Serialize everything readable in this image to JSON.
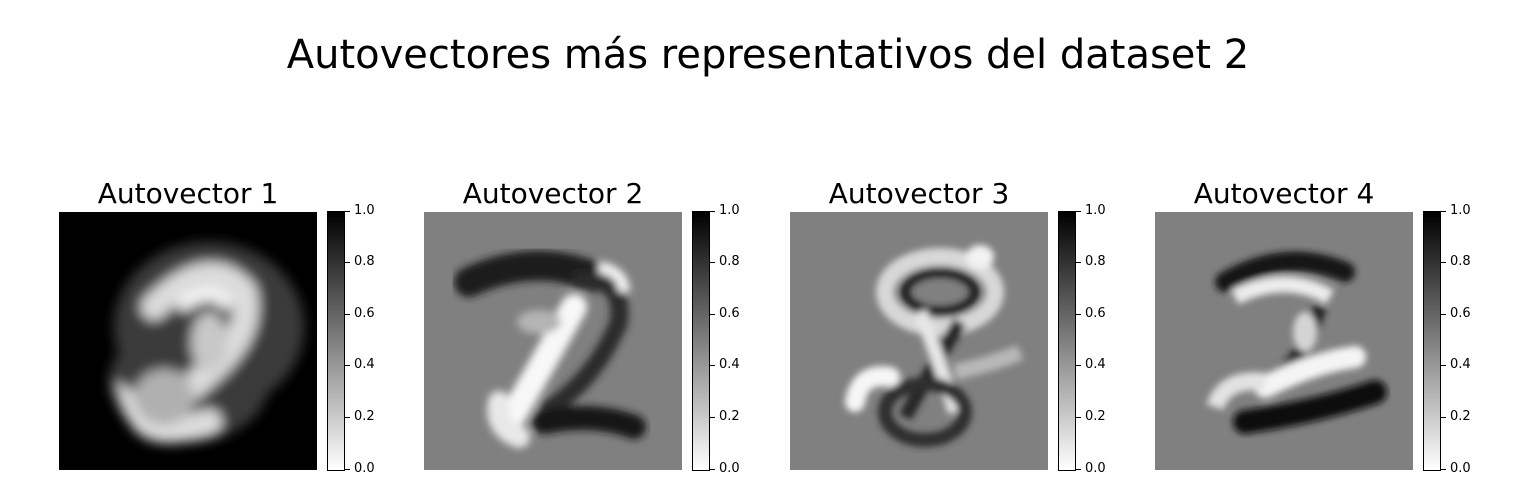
{
  "figure": {
    "title": "Autovectores más representativos del dataset 2"
  },
  "chart_data": [
    {
      "type": "heatmap",
      "title": "Autovector 1",
      "image": "28x28 eigenvector image (eigen-digit, bright '2' shape on black background)",
      "colormap": "gray_r",
      "clim": [
        0,
        1
      ],
      "colorbar_ticks": [
        "0.0",
        "0.2",
        "0.4",
        "0.6",
        "0.8",
        "1.0"
      ],
      "background_value": 1.0
    },
    {
      "type": "heatmap",
      "title": "Autovector 2",
      "image": "28x28 eigenvector image (light and dark strokes on mid-gray background)",
      "colormap": "gray_r",
      "clim": [
        0,
        1
      ],
      "colorbar_ticks": [
        "0.0",
        "0.2",
        "0.4",
        "0.6",
        "0.8",
        "1.0"
      ],
      "background_value": 0.5
    },
    {
      "type": "heatmap",
      "title": "Autovector 3",
      "image": "28x28 eigenvector image (light and dark strokes on mid-gray background)",
      "colormap": "gray_r",
      "clim": [
        0,
        1
      ],
      "colorbar_ticks": [
        "0.0",
        "0.2",
        "0.4",
        "0.6",
        "0.8",
        "1.0"
      ],
      "background_value": 0.5
    },
    {
      "type": "heatmap",
      "title": "Autovector 4",
      "image": "28x28 eigenvector image (light and dark strokes on mid-gray background)",
      "colormap": "gray_r",
      "clim": [
        0,
        1
      ],
      "colorbar_ticks": [
        "0.0",
        "0.2",
        "0.4",
        "0.6",
        "0.8",
        "1.0"
      ],
      "background_value": 0.5
    }
  ]
}
